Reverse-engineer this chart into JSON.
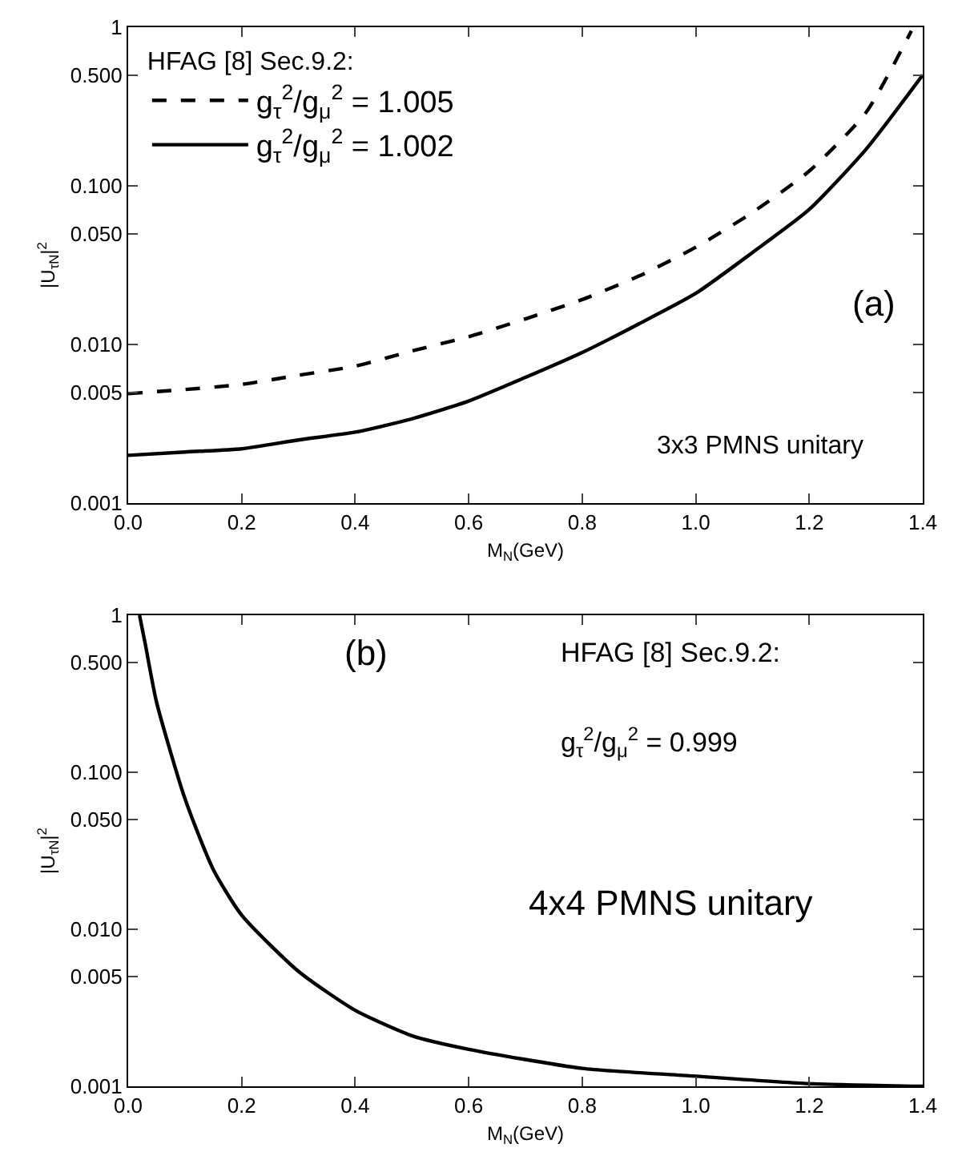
{
  "chart_data": [
    {
      "type": "line",
      "xlabel": "M$_{N}$(GeV)",
      "ylabel": "|U$_{τN}$|$^{2}$",
      "legend_title": "HFAG [8] Sec.9.2:",
      "legend": "top left",
      "log": "y",
      "grid": false,
      "marker": "none",
      "x": [
        0,
        0.1,
        0.2,
        0.3,
        0.4,
        0.5,
        0.6,
        0.7,
        0.8,
        0.9,
        1.0,
        1.1,
        1.2,
        1.3,
        1.4
      ],
      "series": [
        {
          "name": "g$_{τ}$$^{2}$/g$_{μ}$$^{2}$ = 1.005",
          "color": "#000000",
          "line_style": "dashed",
          "x": [
            0,
            0.1,
            0.2,
            0.3,
            0.4,
            0.5,
            0.6,
            0.7,
            0.8,
            0.9,
            1.0,
            1.1,
            1.2,
            1.3,
            1.38
          ],
          "values": [
            0.0049,
            0.0052,
            0.0056,
            0.0064,
            0.0073,
            0.0091,
            0.0112,
            0.0145,
            0.0192,
            0.027,
            0.041,
            0.068,
            0.124,
            0.29,
            0.95
          ]
        },
        {
          "name": "g$_{τ}$$^{2}$/g$_{μ}$$^{2}$ = 1.002",
          "color": "#000000",
          "line_style": "solid",
          "values": [
            0.002,
            0.0021,
            0.0022,
            0.0025,
            0.0028,
            0.0034,
            0.0044,
            0.0062,
            0.0089,
            0.0135,
            0.021,
            0.038,
            0.071,
            0.17,
            0.5
          ]
        }
      ],
      "xlim": [
        0,
        1.4
      ],
      "xticks": [
        {
          "value": 0,
          "label": "0.0"
        },
        {
          "value": 0.2,
          "label": "0.2"
        },
        {
          "value": 0.4,
          "label": "0.4"
        },
        {
          "value": 0.6,
          "label": "0.6"
        },
        {
          "value": 0.8,
          "label": "0.8"
        },
        {
          "value": 1,
          "label": "1.0"
        },
        {
          "value": 1.2,
          "label": "1.2"
        },
        {
          "value": 1.4,
          "label": "1.4"
        }
      ],
      "ylim": [
        0.001,
        1
      ],
      "yticks": [
        {
          "value": 0.001,
          "label": "0.001"
        },
        {
          "value": 0.005,
          "label": "0.005"
        },
        {
          "value": 0.01,
          "label": "0.010"
        },
        {
          "value": 0.05,
          "label": "0.050"
        },
        {
          "value": 0.1,
          "label": "0.100"
        },
        {
          "value": 0.5,
          "label": "0.500"
        },
        1
      ],
      "annotations": [
        "(a)",
        "3x3 PMNS unitary"
      ]
    },
    {
      "type": "line",
      "xlabel": "M$_{N}$(GeV)",
      "ylabel": "|U$_{τN}$|$^{2}$",
      "log": "y",
      "grid": false,
      "marker": "none",
      "legend": false,
      "x": [
        0.02,
        0.03,
        0.05,
        0.1,
        0.15,
        0.2,
        0.3,
        0.4,
        0.5,
        0.6,
        0.8,
        1.0,
        1.2,
        1.4
      ],
      "series": [
        {
          "color": "#000000",
          "line_style": "solid",
          "values": [
            1,
            0.66,
            0.28,
            0.068,
            0.024,
            0.0123,
            0.0054,
            0.00305,
            0.0021,
            0.00172,
            0.0013,
            0.00116,
            0.00104,
            0.001
          ]
        }
      ],
      "xlim": [
        0,
        1.4
      ],
      "xticks": [
        {
          "value": 0,
          "label": "0.0"
        },
        {
          "value": 0.2,
          "label": "0.2"
        },
        {
          "value": 0.4,
          "label": "0.4"
        },
        {
          "value": 0.6,
          "label": "0.6"
        },
        {
          "value": 0.8,
          "label": "0.8"
        },
        {
          "value": 1,
          "label": "1.0"
        },
        {
          "value": 1.2,
          "label": "1.2"
        },
        {
          "value": 1.4,
          "label": "1.4"
        }
      ],
      "ylim": [
        0.001,
        1
      ],
      "yticks": [
        {
          "value": 0.001,
          "label": "0.001"
        },
        {
          "value": 0.005,
          "label": "0.005"
        },
        {
          "value": 0.01,
          "label": "0.010"
        },
        {
          "value": 0.05,
          "label": "0.050"
        },
        {
          "value": 0.1,
          "label": "0.100"
        },
        {
          "value": 0.5,
          "label": "0.500"
        },
        1
      ],
      "annotations": [
        "(b)",
        "HFAG [8] Sec.9.2:",
        "g$_{τ}$$^{2}$/g$_{μ}$$^{2}$ = 0.999",
        "4x4 PMNS unitary"
      ]
    }
  ]
}
